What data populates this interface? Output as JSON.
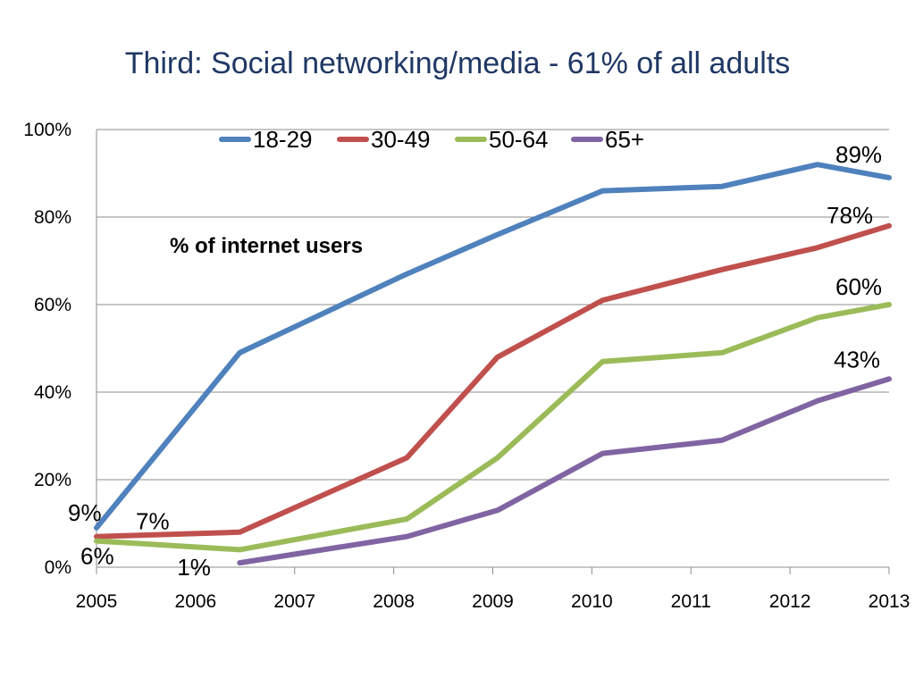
{
  "slide": {
    "title": "Third: Social networking/media - 61% of all adults"
  },
  "chart_data": {
    "type": "line",
    "title": "",
    "subtitle": "% of internet users",
    "xlabel": "",
    "ylabel": "",
    "x_ticks": [
      "2005",
      "2006",
      "2007",
      "2008",
      "2009",
      "2010",
      "2011",
      "2012",
      "2013"
    ],
    "y_ticks": [
      "0%",
      "20%",
      "40%",
      "60%",
      "80%",
      "100%"
    ],
    "ylim": [
      0,
      100
    ],
    "xlim": [
      2005,
      2013.3
    ],
    "grid": "horizontal",
    "legend_placement": "top",
    "series": [
      {
        "name": "18-29",
        "color": "#4f81bd",
        "points": [
          [
            2005.0,
            9
          ],
          [
            2006.5,
            49
          ],
          [
            2008.25,
            67
          ],
          [
            2009.2,
            76
          ],
          [
            2010.3,
            86
          ],
          [
            2011.55,
            87
          ],
          [
            2012.55,
            92
          ],
          [
            2013.3,
            89
          ]
        ]
      },
      {
        "name": "30-49",
        "color": "#c0504d",
        "points": [
          [
            2005.0,
            7
          ],
          [
            2006.5,
            8
          ],
          [
            2008.25,
            25
          ],
          [
            2009.2,
            48
          ],
          [
            2010.3,
            61
          ],
          [
            2011.55,
            68
          ],
          [
            2012.55,
            73
          ],
          [
            2013.3,
            78
          ]
        ]
      },
      {
        "name": "50-64",
        "color": "#9bbb59",
        "points": [
          [
            2005.0,
            6
          ],
          [
            2006.5,
            4
          ],
          [
            2008.25,
            11
          ],
          [
            2009.2,
            25
          ],
          [
            2010.3,
            47
          ],
          [
            2011.55,
            49
          ],
          [
            2012.55,
            57
          ],
          [
            2013.3,
            60
          ]
        ]
      },
      {
        "name": "65+",
        "color": "#8064a2",
        "points": [
          [
            2006.5,
            1
          ],
          [
            2008.25,
            7
          ],
          [
            2009.2,
            13
          ],
          [
            2010.3,
            26
          ],
          [
            2011.55,
            29
          ],
          [
            2012.55,
            38
          ],
          [
            2013.3,
            43
          ]
        ]
      }
    ],
    "data_labels": [
      {
        "text": "9%",
        "series": "18-29",
        "position": "start"
      },
      {
        "text": "7%",
        "series": "30-49",
        "position": "start"
      },
      {
        "text": "6%",
        "series": "50-64",
        "position": "start"
      },
      {
        "text": "1%",
        "series": "65+",
        "position": "start"
      },
      {
        "text": "89%",
        "series": "18-29",
        "position": "end"
      },
      {
        "text": "78%",
        "series": "30-49",
        "position": "end"
      },
      {
        "text": "60%",
        "series": "50-64",
        "position": "end"
      },
      {
        "text": "43%",
        "series": "65+",
        "position": "end"
      }
    ]
  }
}
